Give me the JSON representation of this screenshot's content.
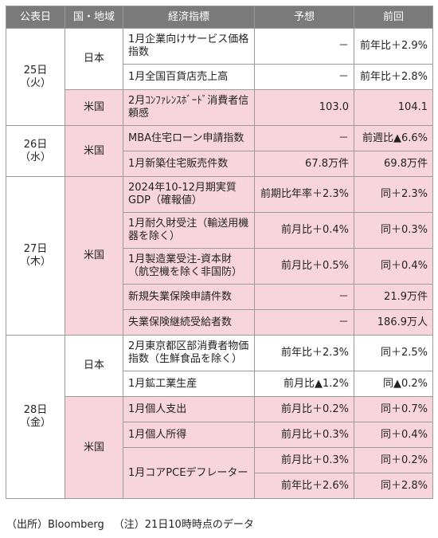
{
  "headers": {
    "date": "公表日",
    "region": "国・地域",
    "indicator": "経済指標",
    "forecast": "予想",
    "previous": "前回"
  },
  "days": [
    {
      "date": "25日",
      "weekday": "（火）",
      "groups": [
        {
          "region": "日本",
          "highlight": false,
          "rows": [
            {
              "indicator": "1月企業向けサービス価格指数",
              "forecast": "－",
              "previous": "前年比＋2.9%"
            },
            {
              "indicator": "1月全国百貨店売上高",
              "forecast": "－",
              "previous": "前年比＋2.8%"
            }
          ]
        },
        {
          "region": "米国",
          "highlight": true,
          "rows": [
            {
              "indicator": "2月ｺﾝﾌｧﾚﾝｽﾎﾞｰﾄﾞ消費者信頼感",
              "forecast": "103.0",
              "previous": "104.1"
            }
          ]
        }
      ]
    },
    {
      "date": "26日",
      "weekday": "（水）",
      "groups": [
        {
          "region": "米国",
          "highlight": true,
          "rows": [
            {
              "indicator": "MBA住宅ローン申請指数",
              "forecast": "－",
              "previous": "前週比▲6.6%"
            },
            {
              "indicator": "1月新築住宅販売件数",
              "forecast": "67.8万件",
              "previous": "69.8万件"
            }
          ]
        }
      ]
    },
    {
      "date": "27日",
      "weekday": "（木）",
      "groups": [
        {
          "region": "米国",
          "highlight": true,
          "rows": [
            {
              "indicator": "2024年10-12月期実質GDP（確報値）",
              "forecast": "前期比年率＋2.3%",
              "previous": "同＋2.3%"
            },
            {
              "indicator": "1月耐久財受注（輸送用機器を除く）",
              "forecast": "前月比＋0.4%",
              "previous": "同＋0.3%"
            },
            {
              "indicator": "1月製造業受注-資本財（航空機を除く非国防）",
              "forecast": "前月比＋0.5%",
              "previous": "同＋0.4%"
            },
            {
              "indicator": "新規失業保険申請件数",
              "forecast": "－",
              "previous": "21.9万件"
            },
            {
              "indicator": "失業保険継続受給者数",
              "forecast": "－",
              "previous": "186.9万人"
            }
          ]
        }
      ]
    },
    {
      "date": "28日",
      "weekday": "（金）",
      "groups": [
        {
          "region": "日本",
          "highlight": false,
          "rows": [
            {
              "indicator": "2月東京都区部消費者物価指数（生鮮食品を除く）",
              "forecast": "前年比＋2.3%",
              "previous": "同＋2.5%"
            },
            {
              "indicator": "1月鉱工業生産",
              "forecast": "前月比▲1.2%",
              "previous": "同▲0.2%"
            }
          ]
        },
        {
          "region": "米国",
          "highlight": true,
          "rows": [
            {
              "indicator": "1月個人支出",
              "forecast": "前月比＋0.2%",
              "previous": "同＋0.7%"
            },
            {
              "indicator": "1月個人所得",
              "forecast": "前月比＋0.3%",
              "previous": "同＋0.4%"
            },
            {
              "indicator": "1月コアPCEデフレーター",
              "forecast": "前月比＋0.3%",
              "previous": "同＋0.2%"
            }
          ]
        }
      ]
    }
  ],
  "core_pce_yoy": {
    "forecast": "前年比＋2.6%",
    "previous": "同＋2.8%"
  },
  "footnote": {
    "source": "（出所）Bloomberg",
    "note": "（注）21日10時時点のデータ"
  }
}
